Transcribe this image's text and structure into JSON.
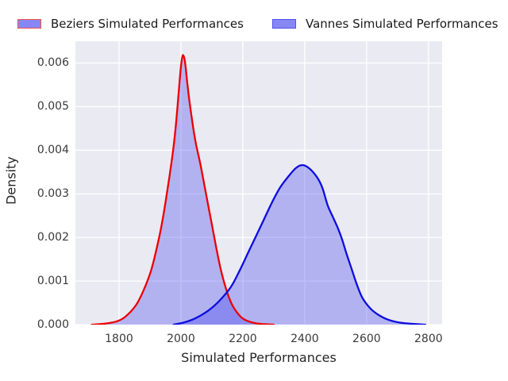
{
  "figure": {
    "background": "#ffffff",
    "plot_background": "#eaeaf2",
    "grid_color": "#ffffff",
    "tick_label_color": "#3a3a3a",
    "axis_label_color": "#262626"
  },
  "legend": {
    "position": "top-outside",
    "items": [
      {
        "label": "Beziers Simulated Performances",
        "edge_color": "#f05050",
        "fill_color": "#8787f3"
      },
      {
        "label": "Vannes Simulated Performances",
        "edge_color": "#5050f0",
        "fill_color": "#8787f3"
      }
    ]
  },
  "chart_data": {
    "type": "area",
    "subtype": "kde-density",
    "title": "",
    "xlabel": "Simulated Performances",
    "ylabel": "Density",
    "xlim": [
      1659,
      2844
    ],
    "ylim": [
      0,
      0.0065
    ],
    "x_tick_values": [
      1800,
      2000,
      2200,
      2400,
      2600,
      2800
    ],
    "x_tick_labels": [
      "1800",
      "2000",
      "2200",
      "2400",
      "2600",
      "2800"
    ],
    "y_tick_values": [
      0,
      0.001,
      0.002,
      0.003,
      0.004,
      0.005,
      0.006
    ],
    "y_tick_labels": [
      "0.000",
      "0.001",
      "0.002",
      "0.003",
      "0.004",
      "0.005",
      "0.006"
    ],
    "grid": true,
    "legend_position": "top",
    "series": [
      {
        "name": "Beziers Simulated Performances",
        "line_color": "#ed0000",
        "fill_color": "rgba(58,58,235,0.32)",
        "peak": {
          "x": 2006,
          "density": 0.0062
        },
        "points": [
          [
            1712,
            0
          ],
          [
            1750,
            2e-05
          ],
          [
            1790,
            7e-05
          ],
          [
            1820,
            0.00018
          ],
          [
            1855,
            0.00045
          ],
          [
            1880,
            0.0008
          ],
          [
            1903,
            0.00123
          ],
          [
            1920,
            0.0017
          ],
          [
            1937,
            0.00226
          ],
          [
            1950,
            0.0028
          ],
          [
            1963,
            0.0034
          ],
          [
            1976,
            0.00407
          ],
          [
            1985,
            0.00468
          ],
          [
            1993,
            0.00535
          ],
          [
            2000,
            0.00592
          ],
          [
            2006,
            0.00618
          ],
          [
            2013,
            0.00603
          ],
          [
            2020,
            0.00558
          ],
          [
            2028,
            0.0051
          ],
          [
            2040,
            0.0045
          ],
          [
            2049,
            0.00413
          ],
          [
            2062,
            0.00371
          ],
          [
            2075,
            0.00323
          ],
          [
            2088,
            0.00274
          ],
          [
            2101,
            0.00226
          ],
          [
            2114,
            0.00177
          ],
          [
            2127,
            0.00132
          ],
          [
            2140,
            0.00096
          ],
          [
            2157,
            0.00059
          ],
          [
            2174,
            0.00035
          ],
          [
            2200,
            0.00014
          ],
          [
            2235,
            4e-05
          ],
          [
            2270,
            1e-05
          ],
          [
            2300,
            0
          ]
        ]
      },
      {
        "name": "Vannes Simulated Performances",
        "line_color": "#0d0de0",
        "fill_color": "rgba(58,58,235,0.32)",
        "peak": {
          "x": 2392,
          "density": 0.00366
        },
        "points": [
          [
            1976,
            0
          ],
          [
            2010,
            5e-05
          ],
          [
            2045,
            0.00014
          ],
          [
            2088,
            0.00032
          ],
          [
            2122,
            0.00053
          ],
          [
            2161,
            0.00086
          ],
          [
            2191,
            0.00126
          ],
          [
            2217,
            0.00165
          ],
          [
            2242,
            0.00202
          ],
          [
            2268,
            0.00241
          ],
          [
            2294,
            0.0028
          ],
          [
            2320,
            0.00314
          ],
          [
            2345,
            0.00338
          ],
          [
            2371,
            0.00359
          ],
          [
            2392,
            0.00366
          ],
          [
            2414,
            0.00359
          ],
          [
            2440,
            0.00338
          ],
          [
            2457,
            0.00314
          ],
          [
            2474,
            0.00274
          ],
          [
            2491,
            0.00247
          ],
          [
            2508,
            0.0022
          ],
          [
            2521,
            0.00195
          ],
          [
            2534,
            0.00165
          ],
          [
            2551,
            0.00129
          ],
          [
            2568,
            0.00093
          ],
          [
            2586,
            0.00062
          ],
          [
            2611,
            0.00038
          ],
          [
            2637,
            0.00023
          ],
          [
            2671,
            0.00011
          ],
          [
            2714,
            4e-05
          ],
          [
            2790,
            0
          ]
        ]
      }
    ]
  }
}
